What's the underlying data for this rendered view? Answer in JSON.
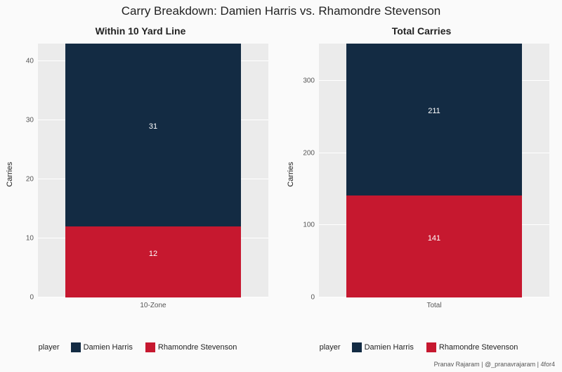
{
  "title": "Carry Breakdown: Damien Harris vs. Rhamondre Stevenson",
  "title_fontsize": 17,
  "background_color": "#fafafa",
  "panel_background": "#ebebeb",
  "grid_color": "#ffffff",
  "colors": {
    "Damien Harris": "#132b43",
    "Rhamondre Stevenson": "#c6182f"
  },
  "y_axis_title": "Carries",
  "legend_title": "player",
  "legend_items": [
    "Damien Harris",
    "Rhamondre Stevenson"
  ],
  "credit": "Pranav Rajaram | @_pranavrajaram | 4for4",
  "panels": [
    {
      "title": "Within 10 Yard Line",
      "x_label": "10-Zone",
      "ylim": [
        0,
        43
      ],
      "yticks": [
        0,
        10,
        20,
        30,
        40
      ],
      "stack": [
        {
          "player": "Rhamondre Stevenson",
          "value": 12
        },
        {
          "player": "Damien Harris",
          "value": 31
        }
      ]
    },
    {
      "title": "Total Carries",
      "x_label": "Total",
      "ylim": [
        0,
        352
      ],
      "yticks": [
        0,
        100,
        200,
        300
      ],
      "stack": [
        {
          "player": "Rhamondre Stevenson",
          "value": 141
        },
        {
          "player": "Damien Harris",
          "value": 211
        }
      ]
    }
  ]
}
